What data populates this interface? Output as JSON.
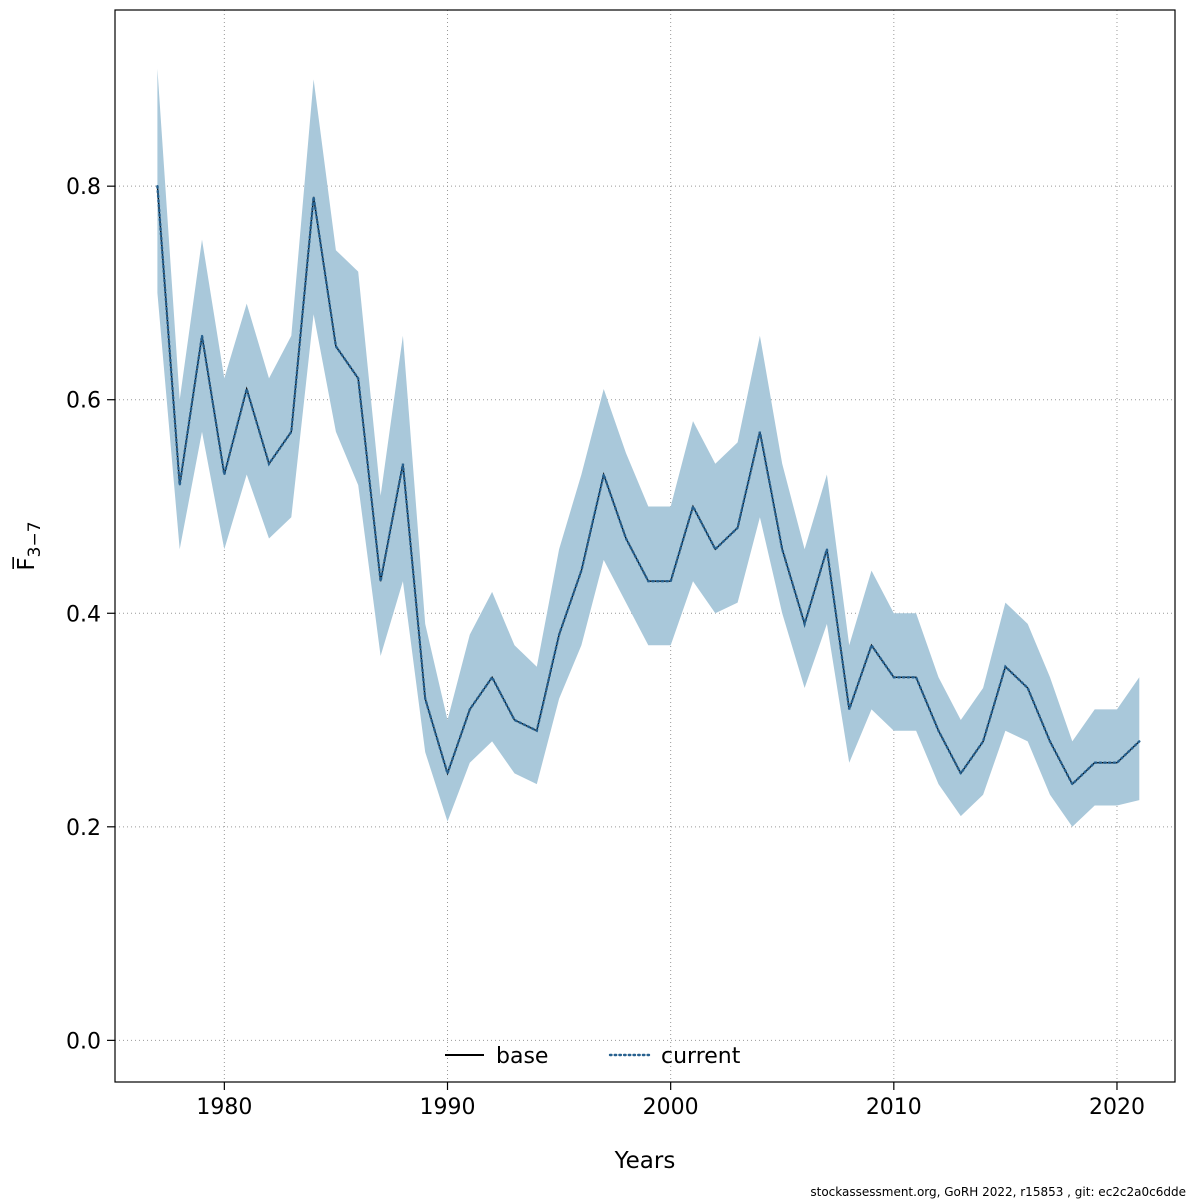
{
  "footer": {
    "credit": "stockassessment.org, GoRH 2022, r15853 , git: ec2c2a0c6dde"
  },
  "chart_data": {
    "type": "line",
    "title": "",
    "xlabel": "Years",
    "ylabel_main": "F̅",
    "ylabel_sub": "3−7",
    "xlim": [
      1975.1,
      2022.6
    ],
    "ylim": [
      -0.039,
      0.965
    ],
    "x_ticks": [
      1980,
      1990,
      2000,
      2010,
      2020
    ],
    "x_tick_labels": [
      "1980",
      "1990",
      "2000",
      "2010",
      "2020"
    ],
    "y_ticks": [
      0.0,
      0.2,
      0.4,
      0.6,
      0.8
    ],
    "y_tick_labels": [
      "0.0",
      "0.2",
      "0.4",
      "0.6",
      "0.8"
    ],
    "grid": true,
    "band_color": "#a9c8da",
    "grid_color": "#999999",
    "legend": {
      "position": "bottom-inside",
      "entries": [
        {
          "label": "base",
          "line": "solid",
          "color": "#000000"
        },
        {
          "label": "current",
          "line": "dotted",
          "color": "#27618f"
        }
      ]
    },
    "series": [
      {
        "name": "base",
        "line": "solid",
        "color": "#000000",
        "note": "coincides with current"
      },
      {
        "name": "current",
        "line": "dotted",
        "color": "#27618f"
      }
    ],
    "x": [
      1977,
      1978,
      1979,
      1980,
      1981,
      1982,
      1983,
      1984,
      1985,
      1986,
      1987,
      1988,
      1989,
      1990,
      1991,
      1992,
      1993,
      1994,
      1995,
      1996,
      1997,
      1998,
      1999,
      2000,
      2001,
      2002,
      2003,
      2004,
      2005,
      2006,
      2007,
      2008,
      2009,
      2010,
      2011,
      2012,
      2013,
      2014,
      2015,
      2016,
      2017,
      2018,
      2019,
      2020,
      2021
    ],
    "values": [
      0.8,
      0.52,
      0.66,
      0.53,
      0.61,
      0.54,
      0.57,
      0.79,
      0.65,
      0.62,
      0.43,
      0.54,
      0.32,
      0.25,
      0.31,
      0.34,
      0.3,
      0.29,
      0.38,
      0.44,
      0.53,
      0.47,
      0.43,
      0.43,
      0.5,
      0.46,
      0.48,
      0.57,
      0.46,
      0.39,
      0.46,
      0.31,
      0.37,
      0.34,
      0.34,
      0.29,
      0.25,
      0.28,
      0.35,
      0.33,
      0.28,
      0.24,
      0.26,
      0.26,
      0.28
    ],
    "upper": [
      0.91,
      0.6,
      0.75,
      0.62,
      0.69,
      0.62,
      0.66,
      0.9,
      0.74,
      0.72,
      0.51,
      0.66,
      0.39,
      0.3,
      0.38,
      0.42,
      0.37,
      0.35,
      0.46,
      0.53,
      0.61,
      0.55,
      0.5,
      0.5,
      0.58,
      0.54,
      0.56,
      0.66,
      0.54,
      0.46,
      0.53,
      0.37,
      0.44,
      0.4,
      0.4,
      0.34,
      0.3,
      0.33,
      0.41,
      0.39,
      0.34,
      0.28,
      0.31,
      0.31,
      0.34
    ],
    "lower": [
      0.7,
      0.46,
      0.57,
      0.46,
      0.53,
      0.47,
      0.49,
      0.68,
      0.57,
      0.52,
      0.36,
      0.43,
      0.27,
      0.205,
      0.26,
      0.28,
      0.25,
      0.24,
      0.32,
      0.37,
      0.45,
      0.41,
      0.37,
      0.37,
      0.43,
      0.4,
      0.41,
      0.49,
      0.4,
      0.33,
      0.39,
      0.26,
      0.31,
      0.29,
      0.29,
      0.24,
      0.21,
      0.23,
      0.29,
      0.28,
      0.23,
      0.2,
      0.22,
      0.22,
      0.225
    ]
  }
}
